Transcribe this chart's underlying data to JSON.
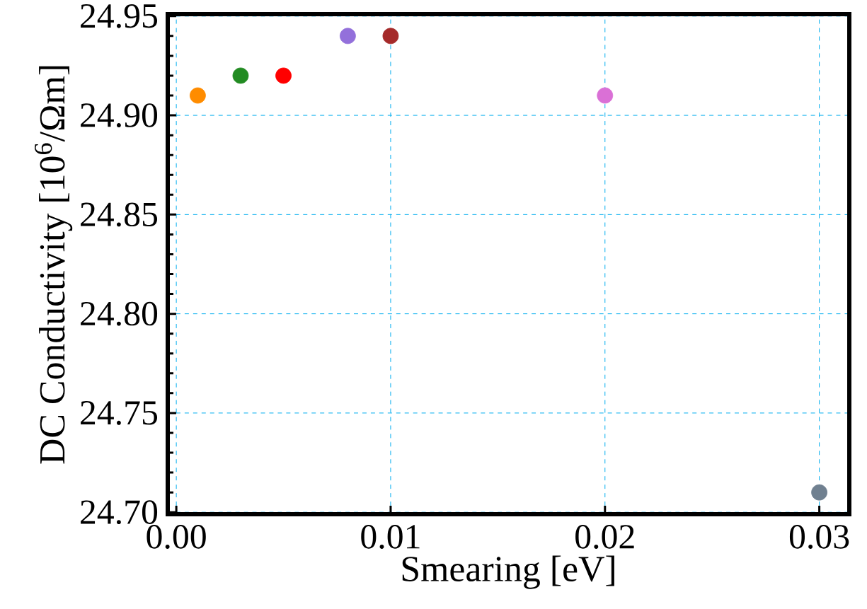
{
  "chart_data": {
    "type": "scatter",
    "xlabel": "Smearing [eV]",
    "ylabel": "DC Conductivity [10$^{6}$/Ωm]",
    "x": [
      0.001,
      0.003,
      0.005,
      0.008,
      0.01,
      0.02,
      0.03
    ],
    "values": [
      24.91,
      24.92,
      24.92,
      24.94,
      24.94,
      24.91,
      24.71
    ],
    "colors": [
      "#ff8c00",
      "#228b22",
      "#ff0000",
      "#9370db",
      "#a52a2a",
      "#da70d6",
      "#708090"
    ],
    "xlim": [
      -0.0004,
      0.0314
    ],
    "ylim": [
      24.699,
      24.951
    ],
    "xticks": [
      {
        "value": 0,
        "label": "0.00"
      },
      {
        "value": 0.01,
        "label": "0.01"
      },
      {
        "value": 0.02,
        "label": "0.02"
      },
      {
        "value": 0.03,
        "label": "0.03"
      }
    ],
    "yticks": [
      {
        "value": 24.7,
        "label": "24.70"
      },
      {
        "value": 24.75,
        "label": "24.75"
      },
      {
        "value": 24.8,
        "label": "24.80"
      },
      {
        "value": 24.85,
        "label": "24.85"
      },
      {
        "value": 24.9,
        "label": "24.90"
      },
      {
        "value": 24.95,
        "label": "24.95"
      }
    ],
    "grid": true,
    "marker": "circle"
  }
}
